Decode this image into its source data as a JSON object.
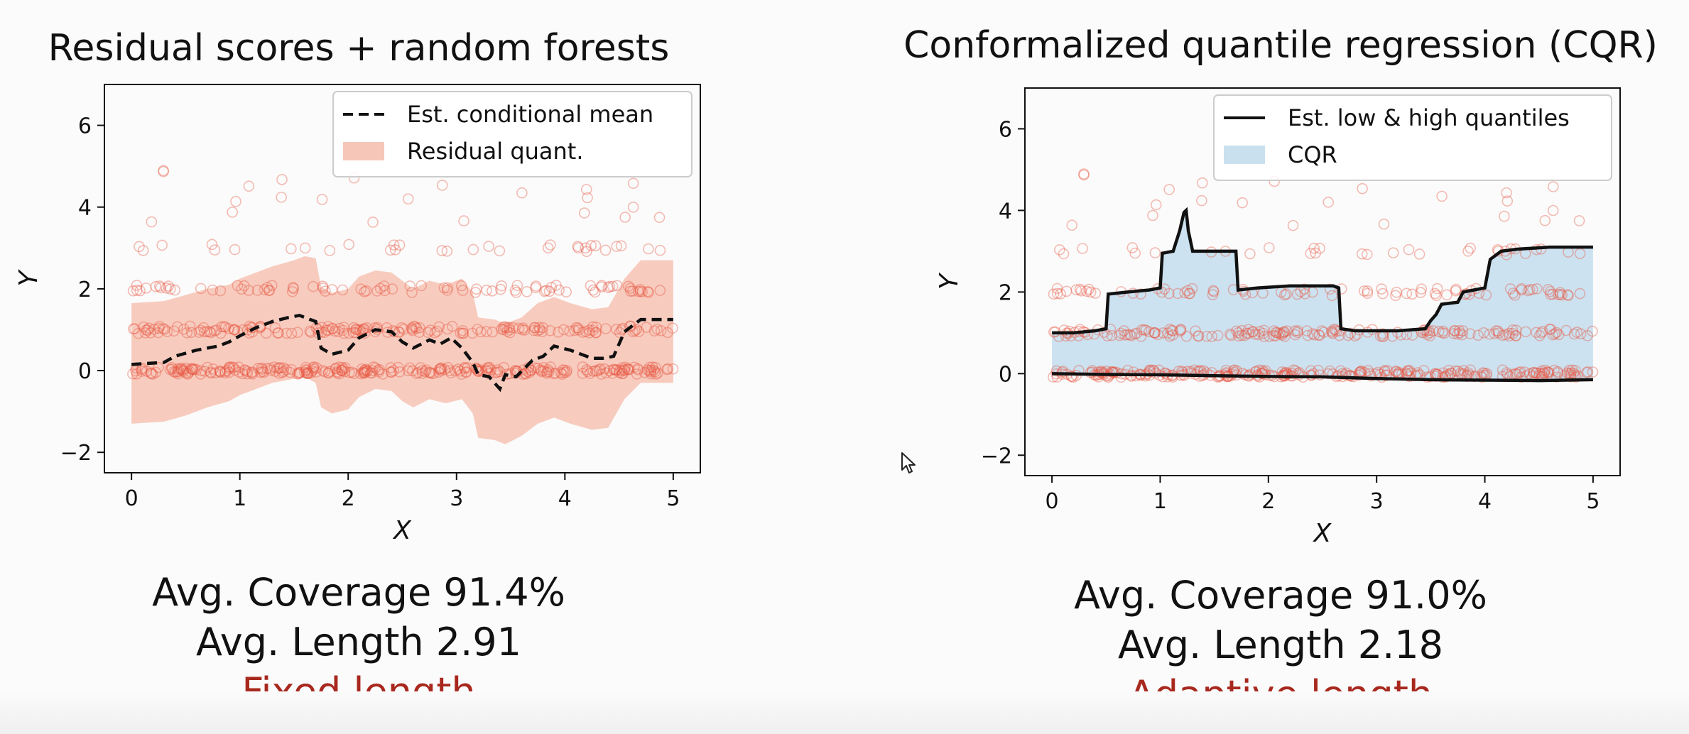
{
  "panels": [
    {
      "id": "left",
      "title": "Residual scores + random forests",
      "stats": {
        "coverage": "Avg. Coverage 91.4%",
        "length": "Avg. Length 2.91",
        "note": "Fixed length"
      }
    },
    {
      "id": "right",
      "title": "Conformalized quantile regression (CQR)",
      "stats": {
        "coverage": "Avg. Coverage 91.0%",
        "length": "Avg. Length 2.18",
        "note": "Adaptive length"
      }
    }
  ],
  "colors": {
    "scatter": "#e8553f",
    "residual_band": "#f6c7b8",
    "cqr_band": "#c9e0ef",
    "line": "#111111",
    "highlight": "#a8281e"
  },
  "chart_data": [
    {
      "type": "line",
      "title": "Residual scores + random forests",
      "xlabel": "X",
      "ylabel": "Y",
      "xlim": [
        -0.25,
        5.25
      ],
      "ylim": [
        -2.5,
        7.0
      ],
      "xticks": [
        "0",
        "1",
        "2",
        "3",
        "4",
        "5"
      ],
      "yticks": [
        "−2",
        "0",
        "2",
        "4",
        "6"
      ],
      "legend_position": "top-right",
      "series": [
        {
          "name": "Est. conditional mean",
          "style": "dashed",
          "x": [
            0,
            0.3,
            0.4,
            0.6,
            0.8,
            0.9,
            1.0,
            1.15,
            1.3,
            1.45,
            1.55,
            1.7,
            1.75,
            1.85,
            2.0,
            2.1,
            2.25,
            2.4,
            2.5,
            2.6,
            2.75,
            2.85,
            2.95,
            3.05,
            3.15,
            3.2,
            3.3,
            3.4,
            3.45,
            3.55,
            3.7,
            3.8,
            3.9,
            4.05,
            4.25,
            4.35,
            4.45,
            4.55,
            4.7,
            5.0
          ],
          "y": [
            0.15,
            0.2,
            0.35,
            0.5,
            0.6,
            0.7,
            0.85,
            1.05,
            1.2,
            1.3,
            1.35,
            1.2,
            0.55,
            0.4,
            0.5,
            0.8,
            1.0,
            0.95,
            0.7,
            0.55,
            0.75,
            0.65,
            0.8,
            0.55,
            0.2,
            -0.1,
            -0.15,
            -0.45,
            -0.1,
            -0.15,
            0.25,
            0.35,
            0.6,
            0.5,
            0.3,
            0.3,
            0.35,
            0.95,
            1.25,
            1.25
          ]
        },
        {
          "name": "Residual quant.",
          "style": "band",
          "x": [
            0,
            0.3,
            0.5,
            0.7,
            0.9,
            1.0,
            1.15,
            1.3,
            1.5,
            1.6,
            1.7,
            1.75,
            1.85,
            2.0,
            2.1,
            2.25,
            2.4,
            2.5,
            2.6,
            2.75,
            2.9,
            3.05,
            3.15,
            3.2,
            3.35,
            3.45,
            3.6,
            3.75,
            3.9,
            4.05,
            4.25,
            4.4,
            4.55,
            4.7,
            5.0
          ],
          "lower": [
            -1.3,
            -1.25,
            -1.1,
            -0.9,
            -0.75,
            -0.6,
            -0.45,
            -0.3,
            -0.2,
            -0.15,
            -0.3,
            -0.9,
            -1.05,
            -0.95,
            -0.65,
            -0.45,
            -0.5,
            -0.75,
            -0.9,
            -0.7,
            -0.8,
            -0.7,
            -1.05,
            -1.65,
            -1.7,
            -1.8,
            -1.6,
            -1.3,
            -1.15,
            -1.3,
            -1.45,
            -1.4,
            -0.7,
            -0.3,
            -0.3
          ],
          "upper": [
            1.65,
            1.7,
            1.85,
            2.0,
            2.1,
            2.25,
            2.4,
            2.55,
            2.7,
            2.8,
            2.75,
            2.05,
            1.9,
            2.0,
            2.3,
            2.45,
            2.4,
            2.2,
            2.0,
            2.2,
            2.1,
            2.25,
            1.9,
            1.3,
            1.25,
            1.15,
            1.3,
            1.65,
            1.8,
            1.65,
            1.5,
            1.55,
            2.25,
            2.7,
            2.7
          ]
        }
      ]
    },
    {
      "type": "line",
      "title": "Conformalized quantile regression (CQR)",
      "xlabel": "X",
      "ylabel": "Y",
      "xlim": [
        -0.25,
        5.25
      ],
      "ylim": [
        -2.5,
        7.0
      ],
      "xticks": [
        "0",
        "1",
        "2",
        "3",
        "4",
        "5"
      ],
      "yticks": [
        "−2",
        "0",
        "2",
        "4",
        "6"
      ],
      "legend_position": "top-right",
      "series": [
        {
          "name": "Est. low & high quantiles",
          "style": "solid-upper",
          "x": [
            0,
            0.2,
            0.4,
            0.5,
            0.52,
            0.7,
            0.9,
            1.0,
            1.02,
            1.12,
            1.18,
            1.22,
            1.24,
            1.26,
            1.3,
            1.4,
            1.6,
            1.7,
            1.72,
            1.9,
            2.2,
            2.6,
            2.65,
            2.67,
            2.8,
            3.0,
            3.2,
            3.45,
            3.5,
            3.55,
            3.6,
            3.75,
            3.8,
            3.9,
            4.0,
            4.05,
            4.15,
            4.3,
            4.6,
            5.0
          ],
          "y": [
            1.0,
            1.0,
            1.05,
            1.1,
            1.95,
            2.0,
            2.05,
            2.1,
            2.95,
            3.0,
            3.5,
            3.95,
            4.0,
            3.5,
            3.0,
            3.0,
            3.0,
            3.0,
            2.05,
            2.1,
            2.15,
            2.15,
            2.1,
            1.1,
            1.05,
            1.05,
            1.05,
            1.1,
            1.3,
            1.45,
            1.7,
            1.75,
            2.0,
            2.05,
            2.1,
            2.8,
            3.0,
            3.05,
            3.1,
            3.1
          ]
        },
        {
          "name": "Est. low & high quantiles (low)",
          "style": "solid-lower",
          "x": [
            0,
            0.5,
            1.0,
            1.5,
            2.0,
            2.5,
            3.0,
            3.5,
            4.0,
            4.5,
            5.0
          ],
          "y": [
            0.0,
            -0.02,
            -0.03,
            -0.05,
            -0.07,
            -0.08,
            -0.12,
            -0.15,
            -0.16,
            -0.17,
            -0.15
          ]
        },
        {
          "name": "CQR",
          "style": "band"
        }
      ]
    }
  ],
  "scatter_levels": [
    0,
    1,
    2,
    3
  ],
  "cursor": "mouse-pointer"
}
